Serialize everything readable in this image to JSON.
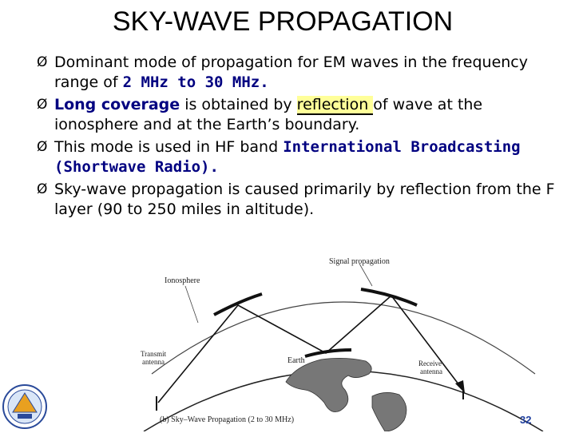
{
  "slide": {
    "title": "SKY-WAVE PROPAGATION",
    "page_number": "32"
  },
  "bullets": [
    {
      "marker": "Ø",
      "parts": [
        "Dominant mode of propagation for EM waves in the frequency range of ",
        "2 MHz to 30 MHz."
      ]
    },
    {
      "marker": "Ø",
      "parts": [
        "Long coverage",
        " is obtained by ",
        "reflection ",
        "of wave at the ionosphere and at the Earth’s boundary."
      ]
    },
    {
      "marker": "Ø",
      "parts": [
        "This mode is used in HF band ",
        "International Broadcasting (Shortwave Radio)."
      ]
    },
    {
      "marker": "Ø",
      "parts": [
        "Sky-wave propagation is caused primarily by reflection from the F layer (90 to 250 miles in altitude)."
      ]
    }
  ],
  "figure": {
    "labels": {
      "signal": "Signal propagation",
      "ionosphere": "Ionosphere",
      "transmit": "Transmit",
      "transmit2": "antenna",
      "earth": "Earth",
      "receive": "Receive",
      "receive2": "antenna",
      "caption": "(b) Sky–Wave Propagation (2 to 30 MHz)"
    }
  },
  "colors": {
    "highlight_text": "#000080",
    "highlight_bg": "#ffff99",
    "page_number": "#1f3f9f"
  }
}
